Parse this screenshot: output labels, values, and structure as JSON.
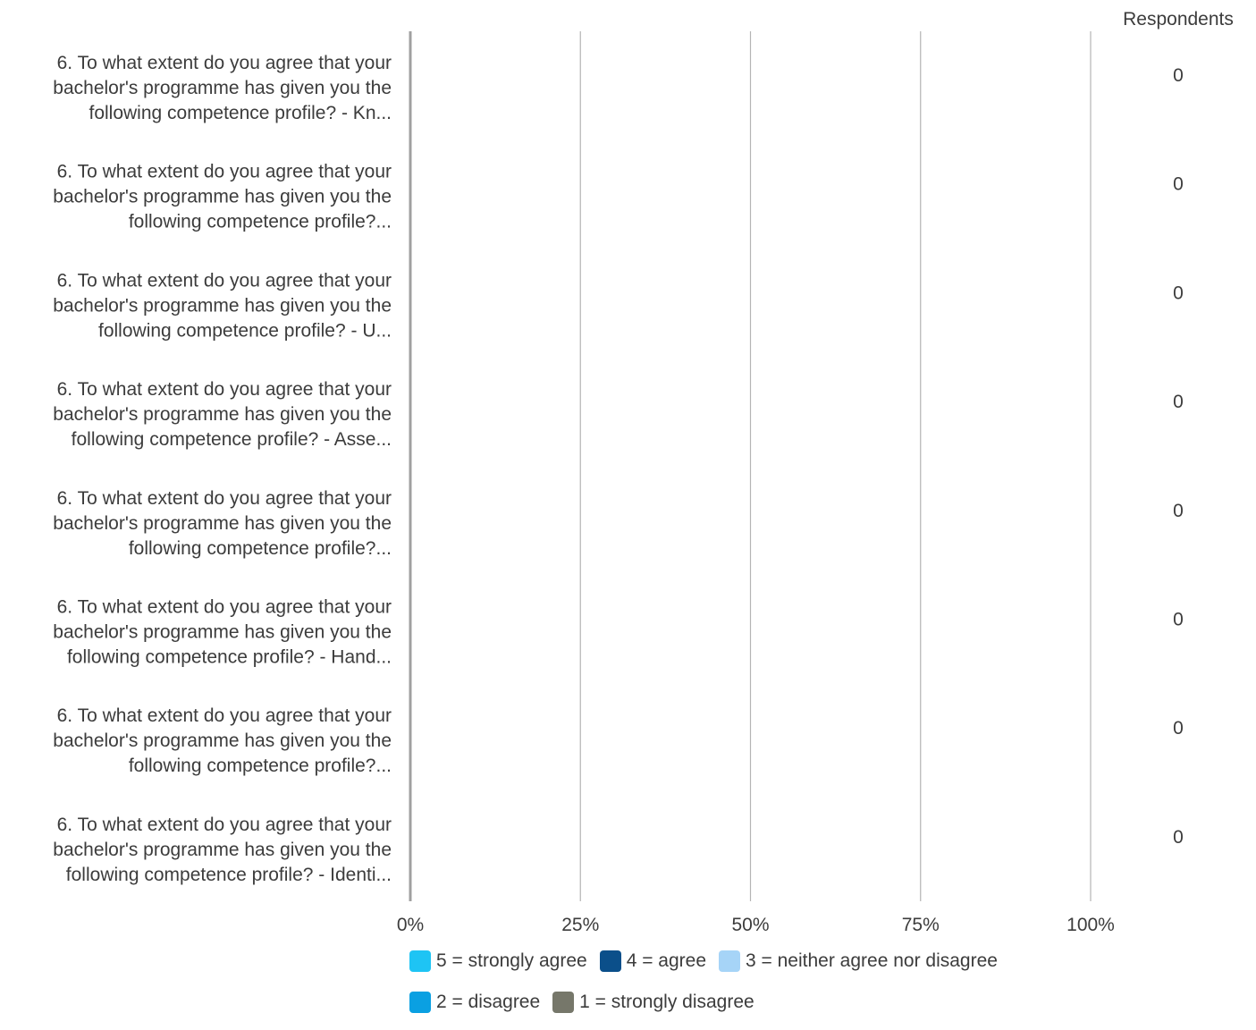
{
  "chart_data": {
    "type": "bar",
    "stacked": true,
    "orientation": "horizontal",
    "percent_scale": true,
    "respondents_header": "Respondents",
    "categories": [
      "6. To what extent do you agree that your bachelor's programme has given you the following competence profile? - Kn...",
      "6. To what extent do you agree that your bachelor's programme has given you the following competence profile?...",
      "6. To what extent do you agree that your bachelor's programme has given you the following competence profile? - U...",
      "6. To what extent do you agree that your bachelor's programme has given you the following competence profile? - Asse...",
      "6. To what extent do you agree that your bachelor's programme has given you the following competence profile?...",
      "6. To what extent do you agree that your bachelor's programme has given you the following competence profile? - Hand...",
      "6. To what extent do you agree that your bachelor's programme has given you the following competence profile?...",
      "6. To what extent do you agree that your bachelor's programme has given you the following competence profile? - Identi..."
    ],
    "category_lines": [
      [
        "6. To what extent do you agree that your",
        "bachelor's programme has given you the",
        "following competence profile? - Kn..."
      ],
      [
        "6. To what extent do you agree that your",
        "bachelor's programme has given you the",
        "following competence profile?..."
      ],
      [
        "6. To what extent do you agree that your",
        "bachelor's programme has given you the",
        "following competence profile? - U..."
      ],
      [
        "6. To what extent do you agree that your",
        "bachelor's programme has given you the",
        "following competence profile? - Asse..."
      ],
      [
        "6. To what extent do you agree that your",
        "bachelor's programme has given you the",
        "following competence profile?..."
      ],
      [
        "6. To what extent do you agree that your",
        "bachelor's programme has given you the",
        "following competence profile? - Hand..."
      ],
      [
        "6. To what extent do you agree that your",
        "bachelor's programme has given you the",
        "following competence profile?..."
      ],
      [
        "6. To what extent do you agree that your",
        "bachelor's programme has given you the",
        "following competence profile? - Identi..."
      ]
    ],
    "respondents": [
      "0",
      "0",
      "0",
      "0",
      "0",
      "0",
      "0",
      "0"
    ],
    "series": [
      {
        "name": "5 = strongly agree",
        "color": "#1ec4f4",
        "values": [
          0,
          0,
          0,
          0,
          0,
          0,
          0,
          0
        ]
      },
      {
        "name": "4 = agree",
        "color": "#0b4f8a",
        "values": [
          0,
          0,
          0,
          0,
          0,
          0,
          0,
          0
        ]
      },
      {
        "name": "3 = neither agree nor disagree",
        "color": "#a6d4f7",
        "values": [
          0,
          0,
          0,
          0,
          0,
          0,
          0,
          0
        ]
      },
      {
        "name": "2 = disagree",
        "color": "#0aa0e2",
        "values": [
          0,
          0,
          0,
          0,
          0,
          0,
          0,
          0
        ]
      },
      {
        "name": "1 = strongly disagree",
        "color": "#76776a",
        "values": [
          0,
          0,
          0,
          0,
          0,
          0,
          0,
          0
        ]
      }
    ],
    "x_ticks": [
      "0%",
      "25%",
      "50%",
      "75%",
      "100%"
    ],
    "xlim": [
      0,
      100
    ],
    "grid": true,
    "legend_position": "bottom",
    "legend_rows": [
      [
        0,
        1,
        2
      ],
      [
        3,
        4
      ]
    ],
    "colors": {
      "grid": "#b4b4b4",
      "axis": "#a0a0a0",
      "text": "#3c3c3c"
    }
  }
}
